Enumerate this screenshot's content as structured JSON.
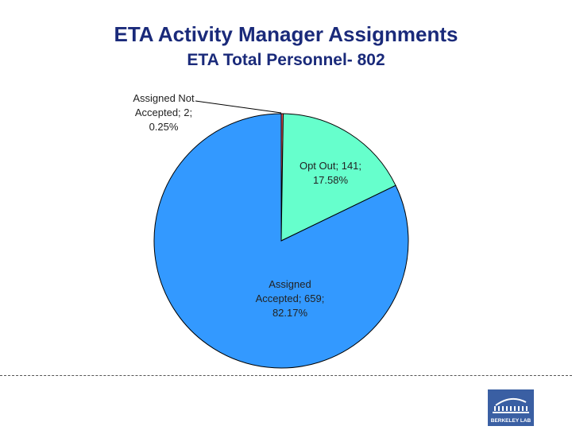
{
  "chart_data": {
    "type": "pie",
    "title": "ETA Activity Manager Assignments",
    "subtitle": "ETA Total Personnel- 802",
    "slices": [
      {
        "label": "Assigned Not Accepted",
        "value": 2,
        "percent": "0.25%",
        "text_lines": [
          "Assigned Not",
          "Accepted; 2;",
          "0.25%"
        ],
        "color": "#ff5a5a"
      },
      {
        "label": "Opt Out",
        "value": 141,
        "percent": "17.58%",
        "text_lines": [
          "Opt Out; 141;",
          "17.58%"
        ],
        "color": "#66ffcc"
      },
      {
        "label": "Assigned Accepted",
        "value": 659,
        "percent": "82.17%",
        "text_lines": [
          "Assigned",
          "Accepted; 659;",
          "82.17%"
        ],
        "color": "#3399ff"
      }
    ],
    "start_angle_deg": 0,
    "direction": "clockwise"
  },
  "logo": {
    "text": "BERKELEY LAB",
    "background": "#3a5fa3"
  }
}
